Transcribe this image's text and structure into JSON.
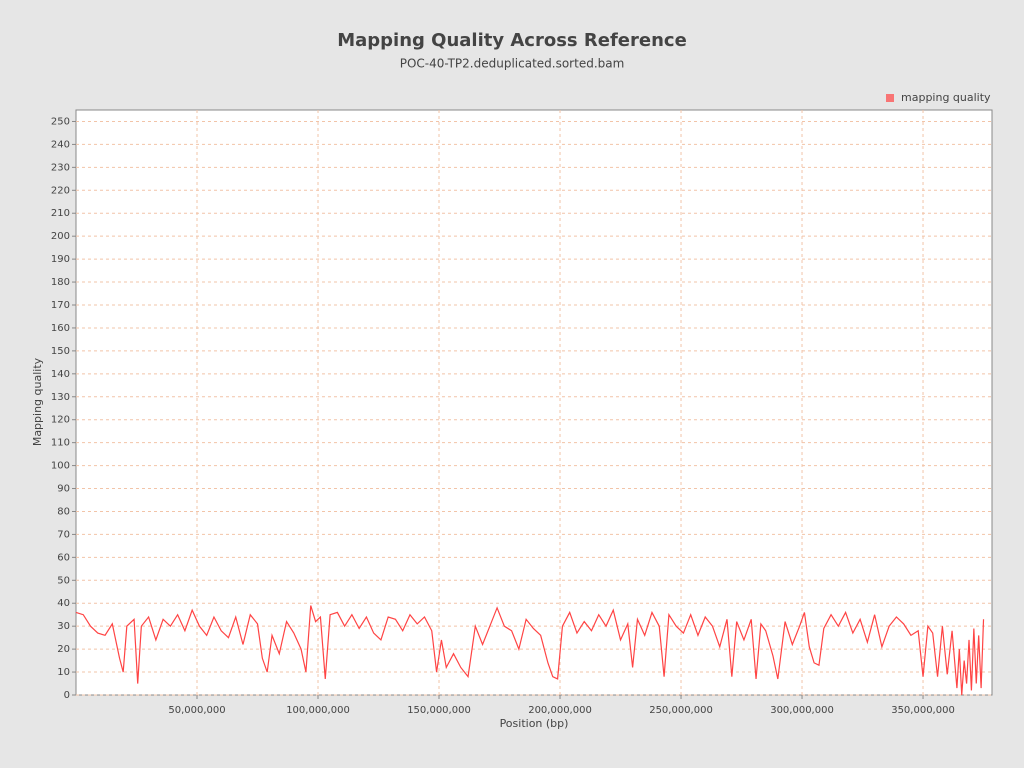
{
  "chart_data": {
    "type": "line",
    "title": "Mapping Quality Across Reference",
    "subtitle": "POC-40-TP2.deduplicated.sorted.bam",
    "x_label": "Position (bp)",
    "y_label": "Mapping quality",
    "legend": "top-right",
    "grid": true,
    "xlim": [
      0,
      378500000
    ],
    "ylim": [
      0,
      255
    ],
    "xticks": [
      {
        "value": 50000000,
        "label": "50,000,000"
      },
      {
        "value": 100000000,
        "label": "100,000,000"
      },
      {
        "value": 150000000,
        "label": "150,000,000"
      },
      {
        "value": 200000000,
        "label": "200,000,000"
      },
      {
        "value": 250000000,
        "label": "250,000,000"
      },
      {
        "value": 300000000,
        "label": "300,000,000"
      },
      {
        "value": 350000000,
        "label": "350,000,000"
      }
    ],
    "yticks": [
      0,
      10,
      20,
      30,
      40,
      50,
      60,
      70,
      80,
      90,
      100,
      110,
      120,
      130,
      140,
      150,
      160,
      170,
      180,
      190,
      200,
      210,
      220,
      230,
      240,
      250
    ],
    "x": [
      0,
      3000000,
      6000000,
      9000000,
      12000000,
      15000000,
      18000000,
      19500000,
      21000000,
      24000000,
      25500000,
      27000000,
      30000000,
      33000000,
      36000000,
      39000000,
      42000000,
      45000000,
      48000000,
      51000000,
      54000000,
      57000000,
      60000000,
      63000000,
      66000000,
      69000000,
      72000000,
      75000000,
      77000000,
      79000000,
      81000000,
      84000000,
      87000000,
      90000000,
      93000000,
      95000000,
      97000000,
      99000000,
      101000000,
      103000000,
      105000000,
      108000000,
      111000000,
      114000000,
      117000000,
      120000000,
      123000000,
      126000000,
      129000000,
      132000000,
      135000000,
      138000000,
      141000000,
      144000000,
      147000000,
      149000000,
      151000000,
      153000000,
      156000000,
      159000000,
      162000000,
      165000000,
      168000000,
      171000000,
      174000000,
      177000000,
      180000000,
      183000000,
      186000000,
      189000000,
      192000000,
      195000000,
      197000000,
      199000000,
      201000000,
      204000000,
      207000000,
      210000000,
      213000000,
      216000000,
      219000000,
      222000000,
      225000000,
      228000000,
      230000000,
      232000000,
      235000000,
      238000000,
      241000000,
      243000000,
      245000000,
      248000000,
      251000000,
      254000000,
      257000000,
      260000000,
      263000000,
      266000000,
      269000000,
      271000000,
      273000000,
      276000000,
      279000000,
      281000000,
      283000000,
      285000000,
      288000000,
      290000000,
      293000000,
      296000000,
      299000000,
      301000000,
      303000000,
      305000000,
      307000000,
      309000000,
      312000000,
      315000000,
      318000000,
      321000000,
      324000000,
      327000000,
      330000000,
      333000000,
      336000000,
      339000000,
      342000000,
      345000000,
      348000000,
      350000000,
      352000000,
      354000000,
      356000000,
      358000000,
      360000000,
      362000000,
      364000000,
      365000000,
      366000000,
      367000000,
      368000000,
      369000000,
      370000000,
      371000000,
      372000000,
      373000000,
      374000000,
      375000000
    ],
    "series": [
      {
        "name": "mapping quality",
        "color": "#ff4444",
        "values": [
          36,
          35,
          30,
          27,
          26,
          31,
          16,
          10,
          30,
          33,
          5,
          30,
          34,
          24,
          33,
          30,
          35,
          28,
          37,
          30,
          26,
          34,
          28,
          25,
          34,
          22,
          35,
          31,
          16,
          10,
          26,
          18,
          32,
          27,
          20,
          10,
          39,
          32,
          34,
          7,
          35,
          36,
          30,
          35,
          29,
          34,
          27,
          24,
          34,
          33,
          28,
          35,
          31,
          34,
          28,
          10,
          24,
          12,
          18,
          12,
          8,
          30,
          22,
          30,
          38,
          30,
          28,
          20,
          33,
          29,
          26,
          14,
          8,
          7,
          30,
          36,
          27,
          32,
          28,
          35,
          30,
          37,
          24,
          31,
          12,
          33,
          26,
          36,
          30,
          8,
          35,
          30,
          27,
          35,
          26,
          34,
          30,
          21,
          33,
          8,
          32,
          24,
          33,
          7,
          31,
          28,
          17,
          7,
          32,
          22,
          30,
          36,
          21,
          14,
          13,
          29,
          35,
          30,
          36,
          27,
          33,
          23,
          35,
          21,
          30,
          34,
          31,
          26,
          28,
          8,
          30,
          27,
          8,
          30,
          9,
          28,
          3,
          20,
          0,
          15,
          5,
          24,
          2,
          29,
          5,
          26,
          3,
          33
        ]
      }
    ]
  }
}
